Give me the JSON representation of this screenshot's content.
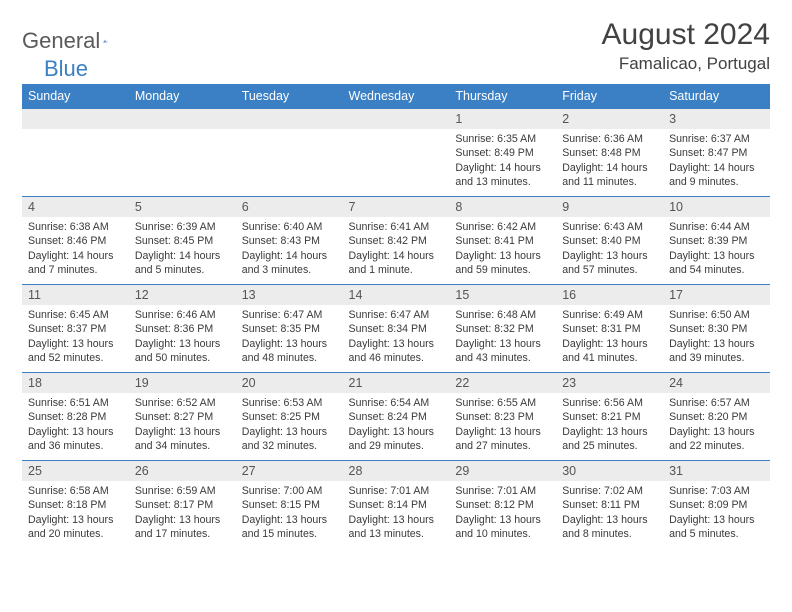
{
  "logo": {
    "text_general": "General",
    "text_blue": "Blue"
  },
  "header": {
    "month_title": "August 2024",
    "location": "Famalicao, Portugal"
  },
  "colors": {
    "header_bg": "#3b7fc4",
    "header_text": "#ffffff",
    "daynum_bg": "#ececec",
    "border": "#3b7fc4",
    "body_text": "#3a3a3a"
  },
  "typography": {
    "title_fontsize": 30,
    "location_fontsize": 17,
    "weekday_fontsize": 12.5,
    "daynum_fontsize": 12.5,
    "body_fontsize": 10.6
  },
  "weekdays": [
    "Sunday",
    "Monday",
    "Tuesday",
    "Wednesday",
    "Thursday",
    "Friday",
    "Saturday"
  ],
  "weeks": [
    [
      {
        "empty": true
      },
      {
        "empty": true
      },
      {
        "empty": true
      },
      {
        "empty": true
      },
      {
        "num": "1",
        "sunrise": "Sunrise: 6:35 AM",
        "sunset": "Sunset: 8:49 PM",
        "daylight": "Daylight: 14 hours and 13 minutes."
      },
      {
        "num": "2",
        "sunrise": "Sunrise: 6:36 AM",
        "sunset": "Sunset: 8:48 PM",
        "daylight": "Daylight: 14 hours and 11 minutes."
      },
      {
        "num": "3",
        "sunrise": "Sunrise: 6:37 AM",
        "sunset": "Sunset: 8:47 PM",
        "daylight": "Daylight: 14 hours and 9 minutes."
      }
    ],
    [
      {
        "num": "4",
        "sunrise": "Sunrise: 6:38 AM",
        "sunset": "Sunset: 8:46 PM",
        "daylight": "Daylight: 14 hours and 7 minutes."
      },
      {
        "num": "5",
        "sunrise": "Sunrise: 6:39 AM",
        "sunset": "Sunset: 8:45 PM",
        "daylight": "Daylight: 14 hours and 5 minutes."
      },
      {
        "num": "6",
        "sunrise": "Sunrise: 6:40 AM",
        "sunset": "Sunset: 8:43 PM",
        "daylight": "Daylight: 14 hours and 3 minutes."
      },
      {
        "num": "7",
        "sunrise": "Sunrise: 6:41 AM",
        "sunset": "Sunset: 8:42 PM",
        "daylight": "Daylight: 14 hours and 1 minute."
      },
      {
        "num": "8",
        "sunrise": "Sunrise: 6:42 AM",
        "sunset": "Sunset: 8:41 PM",
        "daylight": "Daylight: 13 hours and 59 minutes."
      },
      {
        "num": "9",
        "sunrise": "Sunrise: 6:43 AM",
        "sunset": "Sunset: 8:40 PM",
        "daylight": "Daylight: 13 hours and 57 minutes."
      },
      {
        "num": "10",
        "sunrise": "Sunrise: 6:44 AM",
        "sunset": "Sunset: 8:39 PM",
        "daylight": "Daylight: 13 hours and 54 minutes."
      }
    ],
    [
      {
        "num": "11",
        "sunrise": "Sunrise: 6:45 AM",
        "sunset": "Sunset: 8:37 PM",
        "daylight": "Daylight: 13 hours and 52 minutes."
      },
      {
        "num": "12",
        "sunrise": "Sunrise: 6:46 AM",
        "sunset": "Sunset: 8:36 PM",
        "daylight": "Daylight: 13 hours and 50 minutes."
      },
      {
        "num": "13",
        "sunrise": "Sunrise: 6:47 AM",
        "sunset": "Sunset: 8:35 PM",
        "daylight": "Daylight: 13 hours and 48 minutes."
      },
      {
        "num": "14",
        "sunrise": "Sunrise: 6:47 AM",
        "sunset": "Sunset: 8:34 PM",
        "daylight": "Daylight: 13 hours and 46 minutes."
      },
      {
        "num": "15",
        "sunrise": "Sunrise: 6:48 AM",
        "sunset": "Sunset: 8:32 PM",
        "daylight": "Daylight: 13 hours and 43 minutes."
      },
      {
        "num": "16",
        "sunrise": "Sunrise: 6:49 AM",
        "sunset": "Sunset: 8:31 PM",
        "daylight": "Daylight: 13 hours and 41 minutes."
      },
      {
        "num": "17",
        "sunrise": "Sunrise: 6:50 AM",
        "sunset": "Sunset: 8:30 PM",
        "daylight": "Daylight: 13 hours and 39 minutes."
      }
    ],
    [
      {
        "num": "18",
        "sunrise": "Sunrise: 6:51 AM",
        "sunset": "Sunset: 8:28 PM",
        "daylight": "Daylight: 13 hours and 36 minutes."
      },
      {
        "num": "19",
        "sunrise": "Sunrise: 6:52 AM",
        "sunset": "Sunset: 8:27 PM",
        "daylight": "Daylight: 13 hours and 34 minutes."
      },
      {
        "num": "20",
        "sunrise": "Sunrise: 6:53 AM",
        "sunset": "Sunset: 8:25 PM",
        "daylight": "Daylight: 13 hours and 32 minutes."
      },
      {
        "num": "21",
        "sunrise": "Sunrise: 6:54 AM",
        "sunset": "Sunset: 8:24 PM",
        "daylight": "Daylight: 13 hours and 29 minutes."
      },
      {
        "num": "22",
        "sunrise": "Sunrise: 6:55 AM",
        "sunset": "Sunset: 8:23 PM",
        "daylight": "Daylight: 13 hours and 27 minutes."
      },
      {
        "num": "23",
        "sunrise": "Sunrise: 6:56 AM",
        "sunset": "Sunset: 8:21 PM",
        "daylight": "Daylight: 13 hours and 25 minutes."
      },
      {
        "num": "24",
        "sunrise": "Sunrise: 6:57 AM",
        "sunset": "Sunset: 8:20 PM",
        "daylight": "Daylight: 13 hours and 22 minutes."
      }
    ],
    [
      {
        "num": "25",
        "sunrise": "Sunrise: 6:58 AM",
        "sunset": "Sunset: 8:18 PM",
        "daylight": "Daylight: 13 hours and 20 minutes."
      },
      {
        "num": "26",
        "sunrise": "Sunrise: 6:59 AM",
        "sunset": "Sunset: 8:17 PM",
        "daylight": "Daylight: 13 hours and 17 minutes."
      },
      {
        "num": "27",
        "sunrise": "Sunrise: 7:00 AM",
        "sunset": "Sunset: 8:15 PM",
        "daylight": "Daylight: 13 hours and 15 minutes."
      },
      {
        "num": "28",
        "sunrise": "Sunrise: 7:01 AM",
        "sunset": "Sunset: 8:14 PM",
        "daylight": "Daylight: 13 hours and 13 minutes."
      },
      {
        "num": "29",
        "sunrise": "Sunrise: 7:01 AM",
        "sunset": "Sunset: 8:12 PM",
        "daylight": "Daylight: 13 hours and 10 minutes."
      },
      {
        "num": "30",
        "sunrise": "Sunrise: 7:02 AM",
        "sunset": "Sunset: 8:11 PM",
        "daylight": "Daylight: 13 hours and 8 minutes."
      },
      {
        "num": "31",
        "sunrise": "Sunrise: 7:03 AM",
        "sunset": "Sunset: 8:09 PM",
        "daylight": "Daylight: 13 hours and 5 minutes."
      }
    ]
  ]
}
